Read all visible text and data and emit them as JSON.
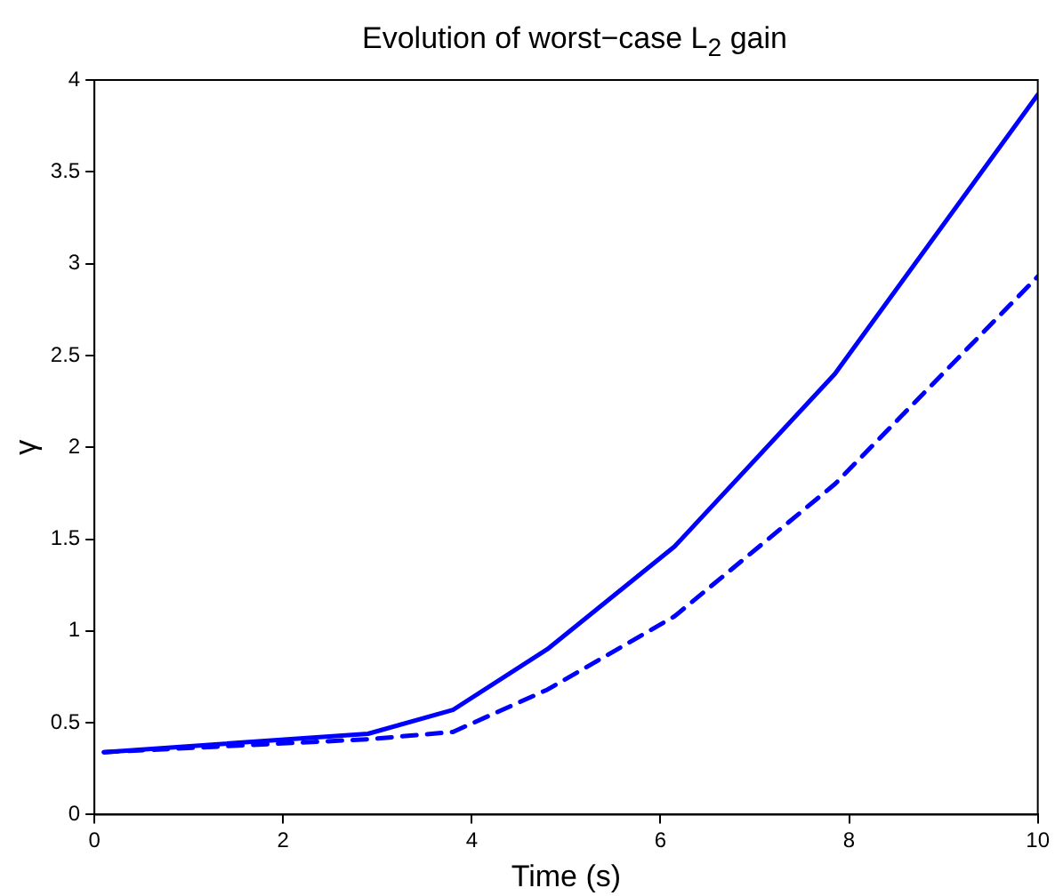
{
  "chart_data": {
    "type": "line",
    "title": "Evolution of worst−case L$_{2}$ gain",
    "xlabel": "Time (s)",
    "ylabel": "γ",
    "xlim": [
      0,
      10
    ],
    "xticks": [
      0,
      2,
      4,
      6,
      8,
      10
    ],
    "ylim": [
      0,
      4
    ],
    "yticks": [
      0,
      0.5,
      1,
      1.5,
      2,
      2.5,
      3,
      3.5,
      4
    ],
    "grid": false,
    "legend": false,
    "marker": "none",
    "series": [
      {
        "color": "#0000ff",
        "line_style": "solid",
        "x": [
          0.1,
          2.9,
          3.8,
          4.8,
          6.15,
          7.85,
          10
        ],
        "values": [
          0.34,
          0.44,
          0.57,
          0.9,
          1.46,
          2.4,
          3.92
        ]
      },
      {
        "color": "#0000ff",
        "line_style": "dashed",
        "x": [
          0.1,
          2.9,
          3.8,
          4.8,
          6.15,
          7.85,
          10
        ],
        "values": [
          0.34,
          0.41,
          0.45,
          0.68,
          1.08,
          1.8,
          2.93
        ]
      }
    ]
  }
}
